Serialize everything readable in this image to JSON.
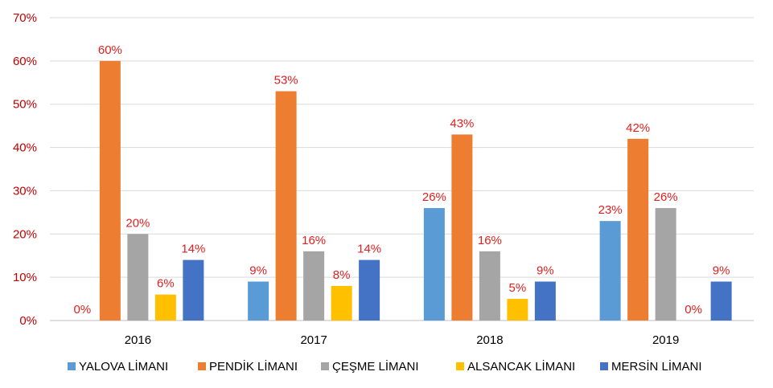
{
  "chart_data": {
    "type": "bar",
    "title": "",
    "xlabel": "",
    "ylabel": "",
    "categories": [
      "2016",
      "2017",
      "2018",
      "2019"
    ],
    "y_ticks": [
      "0%",
      "10%",
      "20%",
      "30%",
      "40%",
      "50%",
      "60%",
      "70%"
    ],
    "ylim": [
      0,
      70
    ],
    "grid": true,
    "legend_position": "bottom",
    "series": [
      {
        "name": "YALOVA LİMANI",
        "color": "#5b9bd5",
        "values": [
          0,
          9,
          26,
          23
        ],
        "labels": [
          "0%",
          "9%",
          "26%",
          "23%"
        ]
      },
      {
        "name": "PENDİK LİMANI",
        "color": "#ed7d31",
        "values": [
          60,
          53,
          43,
          42
        ],
        "labels": [
          "60%",
          "53%",
          "43%",
          "42%"
        ]
      },
      {
        "name": "ÇEŞME LİMANI",
        "color": "#a5a5a5",
        "values": [
          20,
          16,
          16,
          26
        ],
        "labels": [
          "20%",
          "16%",
          "16%",
          "26%"
        ]
      },
      {
        "name": "ALSANCAK LİMANI",
        "color": "#ffc000",
        "values": [
          6,
          8,
          5,
          0
        ],
        "labels": [
          "6%",
          "8%",
          "5%",
          "0%"
        ]
      },
      {
        "name": "MERSİN LİMANI",
        "color": "#4472c4",
        "values": [
          14,
          14,
          9,
          9
        ],
        "labels": [
          "14%",
          "14%",
          "9%",
          "9%"
        ]
      }
    ]
  }
}
